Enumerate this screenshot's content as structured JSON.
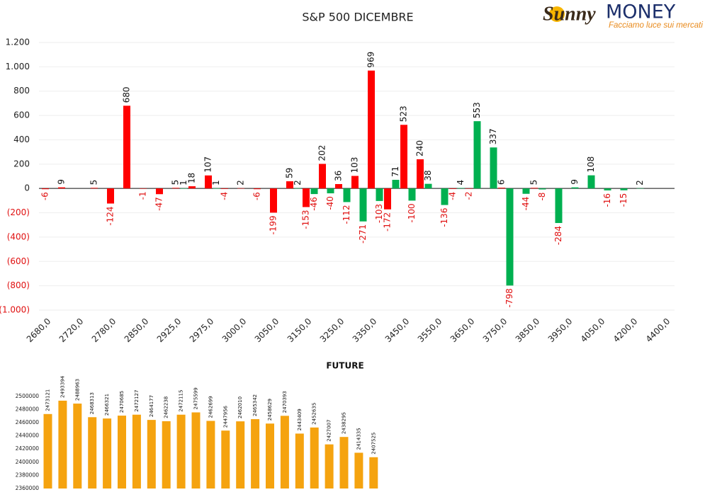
{
  "logo": {
    "brand": "Sunny",
    "brand2": "MONEY",
    "tagline": "Facciamo luce sui mercati"
  },
  "chart_data": [
    {
      "type": "bar",
      "title": "S&P 500 DICEMBRE",
      "categories": [
        "2680,0",
        null,
        "2720,0",
        null,
        "2780,0",
        null,
        "2850,0",
        null,
        "2925,0",
        null,
        "2975,0",
        null,
        "3000,0",
        null,
        "3050,0",
        null,
        "3150,0",
        null,
        "3250,0",
        null,
        "3350,0",
        null,
        "3450,0",
        null,
        "3550,0",
        null,
        "3650,0",
        null,
        "3750,0",
        null,
        "3850,0",
        null,
        "3950,0",
        null,
        "4050,0",
        null,
        "4200,0",
        null,
        "4400,0"
      ],
      "series": [
        {
          "color": "#ff0000",
          "values": [
            -6,
            9,
            null,
            5,
            -124,
            680,
            -1,
            -47,
            5,
            18,
            107,
            -4,
            2,
            -6,
            -199,
            59,
            -153,
            202,
            36,
            103,
            969,
            -172,
            523,
            240,
            null,
            -4,
            -2,
            null,
            6,
            null,
            5,
            null,
            null,
            null,
            null,
            null,
            null,
            null,
            null
          ]
        },
        {
          "color": "#00b050",
          "values": [
            null,
            null,
            null,
            null,
            null,
            null,
            null,
            null,
            1,
            null,
            1,
            null,
            null,
            null,
            null,
            2,
            -46,
            -40,
            -112,
            -271,
            -103,
            71,
            -100,
            38,
            -136,
            4,
            553,
            337,
            -798,
            -44,
            -8,
            -284,
            9,
            108,
            -16,
            -15,
            2,
            null,
            null
          ]
        }
      ],
      "ylim": [
        -1000,
        1200
      ],
      "yticks": [
        {
          "value": 1200,
          "label": "1.200"
        },
        {
          "value": 1000,
          "label": "1.000"
        },
        800,
        600,
        400,
        200,
        0,
        {
          "value": -200,
          "label": "(200)"
        },
        {
          "value": -400,
          "label": "(400)"
        },
        {
          "value": -600,
          "label": "(600)"
        },
        {
          "value": -800,
          "label": "(800)"
        },
        {
          "value": -1000,
          "label": "(1.000)"
        }
      ],
      "grid": true
    },
    {
      "type": "bar",
      "title": "FUTURE",
      "color": "#f5a30f",
      "values": [
        2473121,
        2493394,
        2488963,
        2468313,
        2466321,
        2470685,
        2472127,
        2464177,
        2462238,
        2472115,
        2475599,
        2462699,
        2447956,
        2462010,
        2465342,
        2458629,
        2470393,
        2443409,
        2452635,
        2427007,
        2438295,
        2414335,
        2407525
      ],
      "ylim": [
        2360000,
        2510000
      ],
      "yticks": [
        2360000,
        2380000,
        2400000,
        2420000,
        2440000,
        2460000,
        2480000,
        2500000
      ],
      "grid": false
    }
  ]
}
